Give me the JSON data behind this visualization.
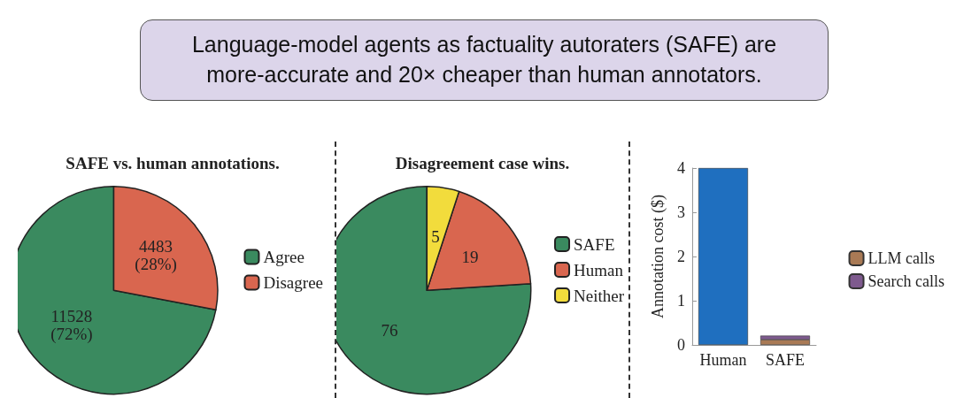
{
  "chart_data": [
    {
      "type": "other",
      "title": "Language-model agents as factuality autoraters (SAFE) are more-accurate and 20× cheaper than human annotators."
    },
    {
      "type": "pie",
      "title": "SAFE vs. human annotations.",
      "categories": [
        "Agree",
        "Disagree"
      ],
      "values": [
        11528,
        4483
      ],
      "colors": [
        "#3a8a5f",
        "#d9664f"
      ],
      "value_labels": [
        "11528\n(72%)",
        "4483\n(28%)"
      ],
      "legend": "right"
    },
    {
      "type": "pie",
      "title": "Disagreement case wins.",
      "categories": [
        "SAFE",
        "Human",
        "Neither"
      ],
      "values": [
        76,
        19,
        5
      ],
      "colors": [
        "#3a8a5f",
        "#d9664f",
        "#f2dc3c"
      ],
      "data_labels": true,
      "legend": "right"
    },
    {
      "type": "bar",
      "categories": [
        "Human",
        "SAFE"
      ],
      "ylabel": "Annotation cost ($)",
      "stacked": true,
      "ylim": [
        0,
        4
      ],
      "yticks": [
        0,
        1,
        2,
        3,
        4
      ],
      "grid": false,
      "legend": "right",
      "series": [
        {
          "color": "#1f6fbf",
          "values": [
            4,
            null
          ]
        },
        {
          "name": "LLM calls",
          "color": "#a97a55",
          "values": [
            null,
            0.12
          ]
        },
        {
          "name": "Search calls",
          "color": "#7e5a8e",
          "values": [
            null,
            0.09
          ]
        }
      ]
    }
  ]
}
